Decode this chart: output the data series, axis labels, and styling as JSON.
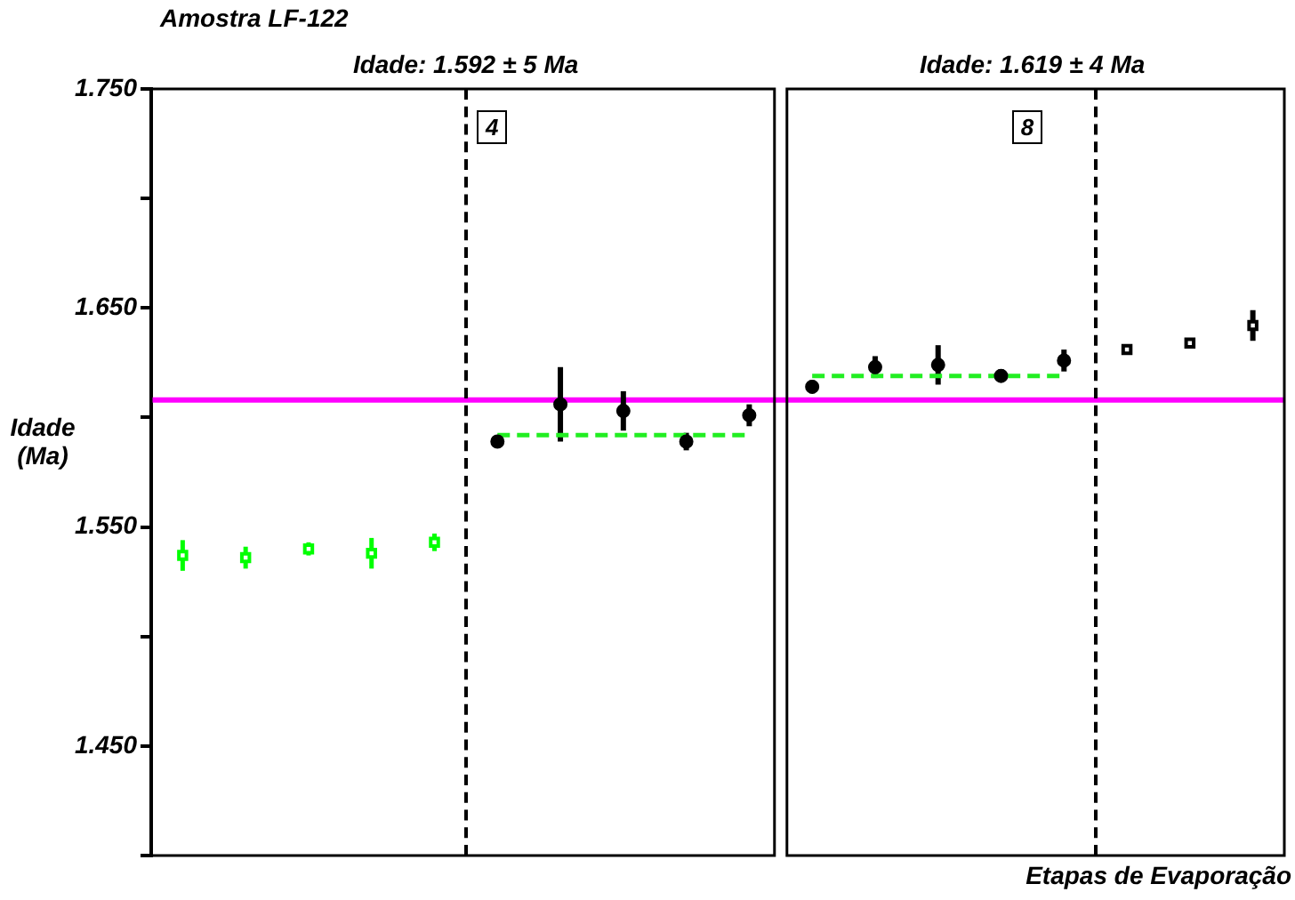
{
  "chart_data": {
    "type": "scatter",
    "title": "Amostra LF-122",
    "ylabel": "Idade (Ma)",
    "xlabel": "Etapas de Evaporação",
    "annotations": [
      "Idade: 1.592 ± 5 Ma",
      "4",
      "Idade: 1.619 ± 4 Ma",
      "8"
    ],
    "categories": [
      null,
      null,
      null,
      null,
      null,
      null,
      null,
      null,
      null,
      null,
      null,
      null,
      null,
      null,
      null,
      null,
      null,
      null
    ],
    "series": [
      {
        "color": "#00ff00",
        "marker": "square",
        "values": [
          1537,
          1536,
          1540,
          1538,
          1543,
          null,
          null,
          null,
          null,
          null,
          null,
          null,
          null,
          null,
          null,
          null,
          null,
          null
        ],
        "errors": [
          7,
          5,
          3,
          7,
          4,
          null,
          null,
          null,
          null,
          null,
          null,
          null,
          null,
          null,
          null,
          null,
          null,
          null
        ]
      },
      {
        "color": "#000000",
        "marker": "circle",
        "values": [
          null,
          null,
          null,
          null,
          null,
          1589,
          1606,
          1603,
          1589,
          1601,
          1614,
          1623,
          1624,
          1619,
          1626,
          null,
          null,
          null
        ],
        "errors": [
          null,
          null,
          null,
          null,
          null,
          1,
          17,
          9,
          4,
          5,
          3,
          5,
          9,
          3,
          5,
          null,
          null,
          null
        ]
      },
      {
        "color": "#000000",
        "marker": "square",
        "values": [
          null,
          null,
          null,
          null,
          null,
          null,
          null,
          null,
          null,
          null,
          null,
          null,
          null,
          null,
          null,
          1631,
          1634,
          1642
        ],
        "errors": [
          null,
          null,
          null,
          null,
          null,
          null,
          null,
          null,
          null,
          null,
          null,
          null,
          null,
          null,
          null,
          2,
          2,
          7
        ]
      },
      {
        "type": "line",
        "color": "#22ee22",
        "marker": "none",
        "line_style": "dashed",
        "values": [
          null,
          null,
          null,
          null,
          null,
          1592,
          1592,
          1592,
          1592,
          1592,
          null,
          null,
          null,
          null,
          null,
          null,
          null,
          null
        ]
      },
      {
        "type": "line",
        "color": "#22ee22",
        "marker": "none",
        "line_style": "dashed",
        "values": [
          null,
          null,
          null,
          null,
          null,
          null,
          null,
          null,
          null,
          null,
          1619,
          1619,
          1619,
          1619,
          1619,
          null,
          null,
          null
        ]
      }
    ],
    "ylim": [
      1400,
      1750
    ],
    "yticks": [
      {
        "value": 1400,
        "label": null
      },
      {
        "value": 1450,
        "label": "1.450"
      },
      {
        "value": 1500,
        "label": null
      },
      {
        "value": 1550,
        "label": "1.550"
      },
      {
        "value": 1600,
        "label": null
      },
      {
        "value": 1650,
        "label": "1.650"
      },
      {
        "value": 1700,
        "label": null
      },
      {
        "value": 1750,
        "label": "1.750"
      }
    ],
    "tick_labels": "y",
    "ref_lines": [
      {
        "axis": "y",
        "value": 1608,
        "color": "#ff00ff"
      }
    ]
  }
}
